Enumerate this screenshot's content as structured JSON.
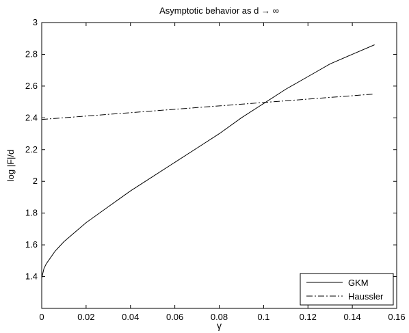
{
  "chart_data": {
    "type": "line",
    "title": "Asymptotic behavior as d → ∞",
    "xlabel": "γ",
    "ylabel": "log |F|/d",
    "xlim": [
      0,
      0.16
    ],
    "ylim": [
      1.2,
      3.0
    ],
    "xticks": [
      0,
      0.02,
      0.04,
      0.06,
      0.08,
      0.1,
      0.12,
      0.14,
      0.16
    ],
    "xtick_labels": [
      "0",
      "0.02",
      "0.04",
      "0.06",
      "0.08",
      "0.1",
      "0.12",
      "0.14",
      "0.16"
    ],
    "yticks": [
      1.4,
      1.6,
      1.8,
      2.0,
      2.2,
      2.4,
      2.6,
      2.8,
      3.0
    ],
    "ytick_labels": [
      "1.4",
      "1.6",
      "1.8",
      "2",
      "2.2",
      "2.4",
      "2.6",
      "2.8",
      "3"
    ],
    "grid": false,
    "legend_position": "bottom-right",
    "series": [
      {
        "name": "GKM",
        "style": "solid",
        "color": "#000000",
        "x": [
          0,
          0.001,
          0.002,
          0.004,
          0.006,
          0.008,
          0.01,
          0.015,
          0.02,
          0.025,
          0.03,
          0.035,
          0.04,
          0.05,
          0.06,
          0.07,
          0.08,
          0.09,
          0.1,
          0.11,
          0.12,
          0.13,
          0.14,
          0.15
        ],
        "y": [
          1.39,
          1.45,
          1.48,
          1.52,
          1.56,
          1.59,
          1.62,
          1.68,
          1.74,
          1.79,
          1.84,
          1.89,
          1.94,
          2.03,
          2.12,
          2.21,
          2.3,
          2.4,
          2.49,
          2.58,
          2.66,
          2.74,
          2.8,
          2.86
        ]
      },
      {
        "name": "Haussler",
        "style": "dash-dot",
        "color": "#000000",
        "x": [
          0,
          0.15
        ],
        "y": [
          2.39,
          2.55
        ]
      }
    ]
  }
}
